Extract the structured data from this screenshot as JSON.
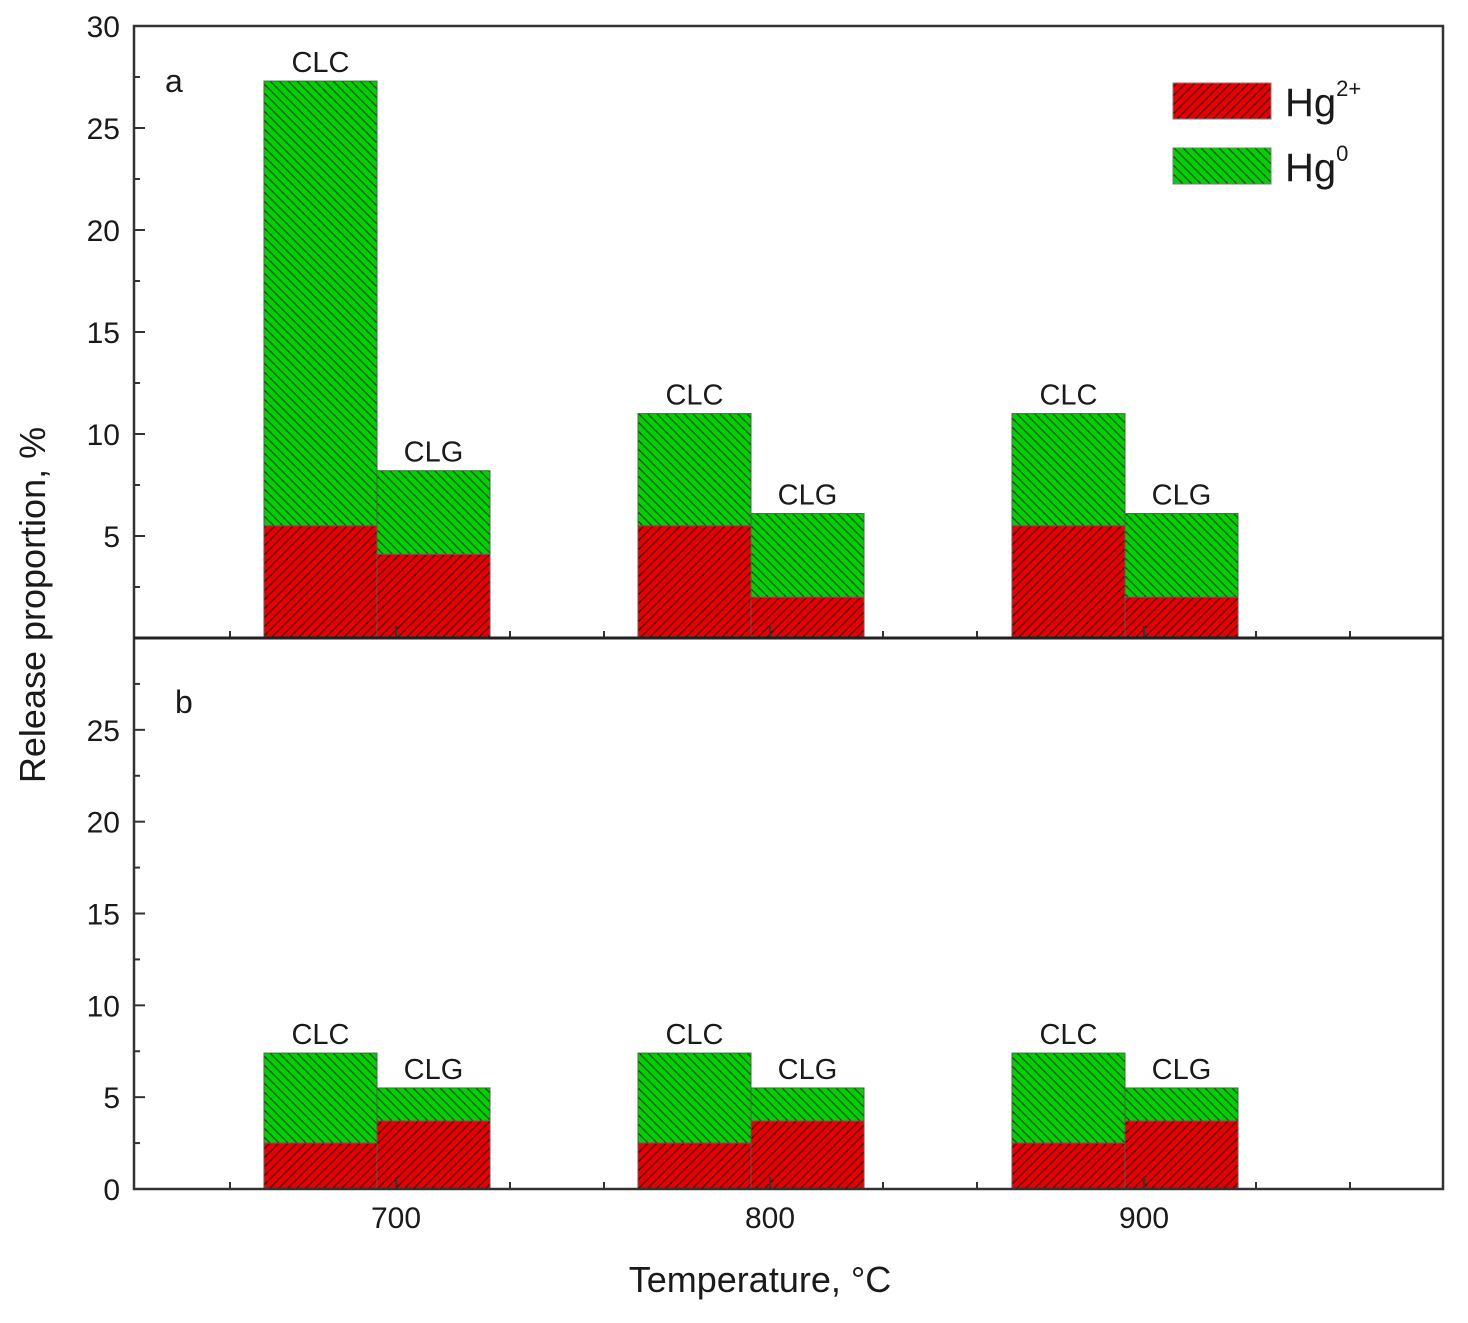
{
  "chart_data": {
    "type": "bar",
    "stacked": true,
    "xlabel": "Temperature, °C",
    "ylabel": "Release proportion, %",
    "categories": [
      "700",
      "800",
      "900"
    ],
    "legend": {
      "position": "top-right",
      "entries": [
        {
          "key": "hg2",
          "base": "Hg",
          "sup": "2+",
          "color": "#e80000"
        },
        {
          "key": "hg0",
          "base": "Hg",
          "sup": "0",
          "color": "#00d200"
        }
      ]
    },
    "panels": [
      {
        "label": "a",
        "ylim": [
          0,
          30
        ],
        "yticks": [
          5,
          10,
          15,
          20,
          25,
          30
        ],
        "bars": [
          {
            "category": "700",
            "fuel": "CLC",
            "hg2": 5.5,
            "hg0": 21.8
          },
          {
            "category": "700",
            "fuel": "CLG",
            "hg2": 4.1,
            "hg0": 4.1
          },
          {
            "category": "800",
            "fuel": "CLC",
            "hg2": 5.5,
            "hg0": 5.5
          },
          {
            "category": "800",
            "fuel": "CLG",
            "hg2": 2.0,
            "hg0": 4.1
          },
          {
            "category": "900",
            "fuel": "CLC",
            "hg2": 5.5,
            "hg0": 5.5
          },
          {
            "category": "900",
            "fuel": "CLG",
            "hg2": 2.0,
            "hg0": 4.1
          }
        ]
      },
      {
        "label": "b",
        "ylim": [
          0,
          30
        ],
        "yticks": [
          0,
          5,
          10,
          15,
          20,
          25
        ],
        "bars": [
          {
            "category": "700",
            "fuel": "CLC",
            "hg2": 2.5,
            "hg0": 4.9
          },
          {
            "category": "700",
            "fuel": "CLG",
            "hg2": 3.7,
            "hg0": 1.8
          },
          {
            "category": "800",
            "fuel": "CLC",
            "hg2": 2.5,
            "hg0": 4.9
          },
          {
            "category": "800",
            "fuel": "CLG",
            "hg2": 3.7,
            "hg0": 1.8
          },
          {
            "category": "900",
            "fuel": "CLC",
            "hg2": 2.5,
            "hg0": 4.9
          },
          {
            "category": "900",
            "fuel": "CLG",
            "hg2": 3.7,
            "hg0": 1.8
          }
        ]
      }
    ]
  }
}
